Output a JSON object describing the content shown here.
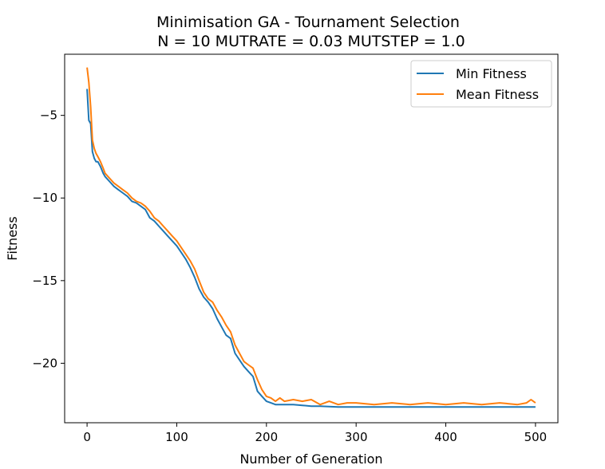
{
  "chart_data": {
    "type": "line",
    "title": "Minimisation GA - Tournament Selection",
    "subtitle": "N = 10 MUTRATE = 0.03 MUTSTEP = 1.0",
    "xlabel": "Number of Generation",
    "ylabel": "Fitness",
    "xlim": [
      -25,
      525
    ],
    "ylim": [
      -23.6,
      -1.3
    ],
    "xticks": [
      0,
      100,
      200,
      300,
      400,
      500
    ],
    "yticks": [
      -20,
      -15,
      -10,
      -5
    ],
    "xtick_labels": [
      "0",
      "100",
      "200",
      "300",
      "400",
      "500"
    ],
    "ytick_labels": [
      "−20",
      "−15",
      "−10",
      "−5"
    ],
    "grid": false,
    "legend_position": "top-right",
    "series": [
      {
        "name": "Min Fitness",
        "color": "#1f77b4",
        "x": [
          0,
          2,
          4,
          6,
          8,
          10,
          12,
          15,
          18,
          20,
          25,
          30,
          35,
          40,
          45,
          50,
          55,
          60,
          65,
          70,
          75,
          80,
          85,
          90,
          95,
          100,
          105,
          110,
          115,
          120,
          125,
          130,
          135,
          140,
          145,
          150,
          155,
          160,
          165,
          170,
          175,
          180,
          185,
          190,
          195,
          200,
          205,
          210,
          220,
          230,
          240,
          250,
          260,
          280,
          300,
          350,
          400,
          450,
          500
        ],
        "values": [
          -3.4,
          -5.3,
          -5.5,
          -7.2,
          -7.6,
          -7.8,
          -7.8,
          -8.1,
          -8.5,
          -8.7,
          -9.0,
          -9.3,
          -9.5,
          -9.7,
          -9.9,
          -10.2,
          -10.3,
          -10.5,
          -10.7,
          -11.2,
          -11.4,
          -11.7,
          -12.0,
          -12.3,
          -12.6,
          -12.9,
          -13.3,
          -13.7,
          -14.2,
          -14.8,
          -15.5,
          -16.0,
          -16.3,
          -16.7,
          -17.3,
          -17.8,
          -18.3,
          -18.5,
          -19.4,
          -19.8,
          -20.2,
          -20.5,
          -20.8,
          -21.7,
          -22.0,
          -22.3,
          -22.4,
          -22.5,
          -22.5,
          -22.5,
          -22.55,
          -22.6,
          -22.6,
          -22.65,
          -22.65,
          -22.65,
          -22.65,
          -22.65,
          -22.65
        ]
      },
      {
        "name": "Mean Fitness",
        "color": "#ff7f0e",
        "x": [
          0,
          2,
          4,
          6,
          8,
          10,
          12,
          15,
          18,
          20,
          25,
          30,
          35,
          40,
          45,
          50,
          55,
          60,
          65,
          70,
          75,
          80,
          85,
          90,
          95,
          100,
          105,
          110,
          115,
          120,
          125,
          130,
          135,
          140,
          145,
          150,
          155,
          160,
          165,
          170,
          175,
          180,
          185,
          190,
          195,
          200,
          205,
          210,
          215,
          220,
          230,
          240,
          250,
          260,
          270,
          280,
          290,
          300,
          320,
          340,
          360,
          380,
          400,
          420,
          440,
          460,
          480,
          490,
          495,
          500
        ],
        "values": [
          -2.1,
          -3.0,
          -4.5,
          -6.5,
          -7.0,
          -7.3,
          -7.5,
          -7.8,
          -8.2,
          -8.5,
          -8.8,
          -9.1,
          -9.3,
          -9.5,
          -9.7,
          -10.0,
          -10.2,
          -10.3,
          -10.5,
          -10.8,
          -11.2,
          -11.4,
          -11.7,
          -12.0,
          -12.3,
          -12.6,
          -13.0,
          -13.4,
          -13.8,
          -14.3,
          -15.0,
          -15.7,
          -16.1,
          -16.3,
          -16.8,
          -17.2,
          -17.7,
          -18.1,
          -18.9,
          -19.4,
          -19.9,
          -20.1,
          -20.3,
          -21.0,
          -21.6,
          -22.0,
          -22.1,
          -22.3,
          -22.1,
          -22.3,
          -22.2,
          -22.3,
          -22.2,
          -22.5,
          -22.3,
          -22.5,
          -22.4,
          -22.4,
          -22.5,
          -22.4,
          -22.5,
          -22.4,
          -22.5,
          -22.4,
          -22.5,
          -22.4,
          -22.5,
          -22.4,
          -22.2,
          -22.4
        ]
      }
    ]
  }
}
